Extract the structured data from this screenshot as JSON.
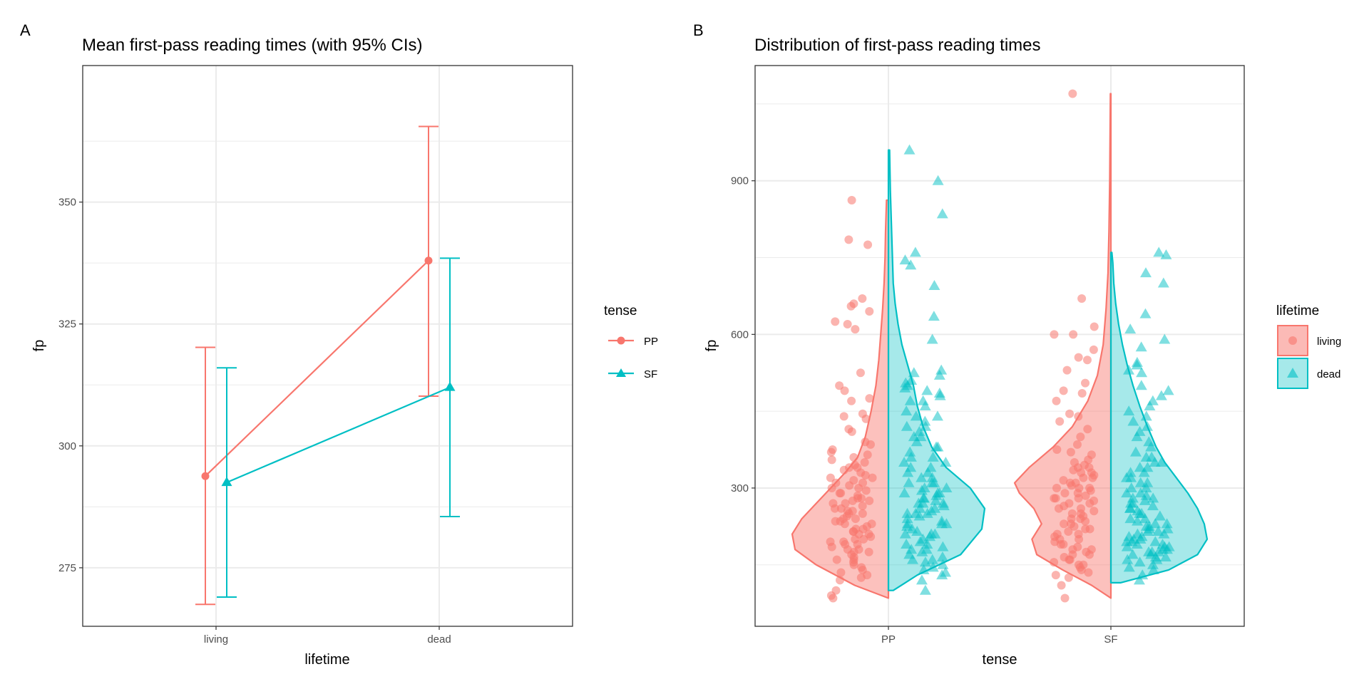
{
  "colors": {
    "red": "#F8766D",
    "teal": "#00BFC4",
    "grid": "#EBEBEB",
    "border": "#333333"
  },
  "chart_data": [
    {
      "panel": "A",
      "type": "line",
      "title": "Mean first-pass reading times (with 95% CIs)",
      "xlabel": "lifetime",
      "ylabel": "fp",
      "categories": [
        "living",
        "dead"
      ],
      "ylim": [
        263,
        378
      ],
      "yticks": [
        275,
        300,
        325,
        350
      ],
      "grid": true,
      "legend": {
        "title": "tense",
        "position": "right",
        "entries": [
          "PP",
          "SF"
        ]
      },
      "series": [
        {
          "name": "PP",
          "color": "#F8766D",
          "marker": "circle",
          "values": [
            293.8,
            338.0
          ],
          "ci_low": [
            267.5,
            310.2
          ],
          "ci_high": [
            320.2,
            365.5
          ]
        },
        {
          "name": "SF",
          "color": "#00BFC4",
          "marker": "triangle",
          "values": [
            292.5,
            312.0
          ],
          "ci_low": [
            269.0,
            285.5
          ],
          "ci_high": [
            316.0,
            338.5
          ]
        }
      ]
    },
    {
      "panel": "B",
      "type": "scatter",
      "subtype": "split violin with jittered points",
      "title": "Distribution of first-pass reading times",
      "xlabel": "tense",
      "ylabel": "fp",
      "categories": [
        "PP",
        "SF"
      ],
      "ylim": [
        30,
        1125
      ],
      "yticks": [
        300,
        600,
        900
      ],
      "grid": true,
      "legend": {
        "title": "lifetime",
        "position": "right",
        "entries": [
          "living",
          "dead"
        ]
      },
      "groups": [
        {
          "tense": "PP",
          "lifetime": "living",
          "color": "#F8766D",
          "marker": "circle",
          "range": [
            85,
            862
          ],
          "density": [
            [
              85,
              0
            ],
            [
              110,
              0.35
            ],
            [
              150,
              0.75
            ],
            [
              180,
              0.97
            ],
            [
              210,
              1.0
            ],
            [
              240,
              0.9
            ],
            [
              270,
              0.75
            ],
            [
              300,
              0.6
            ],
            [
              330,
              0.45
            ],
            [
              360,
              0.32
            ],
            [
              400,
              0.24
            ],
            [
              450,
              0.18
            ],
            [
              500,
              0.13
            ],
            [
              550,
              0.1
            ],
            [
              600,
              0.08
            ],
            [
              650,
              0.06
            ],
            [
              700,
              0.045
            ],
            [
              750,
              0.035
            ],
            [
              800,
              0.03
            ],
            [
              862,
              0.02
            ]
          ],
          "points": [
            862,
            785,
            775,
            670,
            660,
            655,
            645,
            625,
            620,
            610,
            525,
            500,
            490,
            475,
            470,
            445,
            440,
            435,
            415,
            410,
            390,
            385,
            375,
            370,
            365,
            360,
            355,
            350,
            345,
            340,
            335,
            330,
            325,
            320,
            315,
            310,
            305,
            300,
            295,
            290,
            285,
            280,
            275,
            270,
            265,
            260,
            255,
            250,
            245,
            240,
            235,
            230,
            225,
            220,
            215,
            210,
            205,
            200,
            195,
            190,
            185,
            180,
            175,
            170,
            165,
            160,
            155,
            150,
            145,
            140,
            135,
            130,
            125,
            120,
            100,
            90,
            85,
            310,
            290,
            270,
            250,
            230,
            210,
            190,
            200,
            220,
            240,
            260,
            280,
            300,
            320,
            340,
            180,
            160,
            175,
            195,
            215,
            235,
            255,
            275
          ]
        },
        {
          "tense": "PP",
          "lifetime": "dead",
          "color": "#00BFC4",
          "marker": "triangle",
          "range": [
            100,
            960
          ],
          "density": [
            [
              100,
              0.05
            ],
            [
              130,
              0.3
            ],
            [
              170,
              0.75
            ],
            [
              220,
              0.97
            ],
            [
              260,
              1.0
            ],
            [
              300,
              0.85
            ],
            [
              340,
              0.6
            ],
            [
              380,
              0.45
            ],
            [
              420,
              0.36
            ],
            [
              460,
              0.3
            ],
            [
              500,
              0.26
            ],
            [
              540,
              0.2
            ],
            [
              580,
              0.14
            ],
            [
              620,
              0.1
            ],
            [
              660,
              0.07
            ],
            [
              700,
              0.05
            ],
            [
              760,
              0.04
            ],
            [
              820,
              0.03
            ],
            [
              880,
              0.02
            ],
            [
              960,
              0.012
            ]
          ],
          "points": [
            960,
            900,
            835,
            760,
            745,
            735,
            695,
            635,
            590,
            530,
            525,
            520,
            510,
            505,
            500,
            495,
            490,
            485,
            480,
            470,
            460,
            450,
            440,
            430,
            420,
            410,
            400,
            390,
            380,
            370,
            360,
            350,
            340,
            330,
            320,
            310,
            300,
            295,
            290,
            285,
            280,
            275,
            270,
            265,
            260,
            255,
            250,
            245,
            240,
            235,
            230,
            225,
            220,
            215,
            210,
            205,
            200,
            195,
            190,
            185,
            180,
            175,
            170,
            165,
            160,
            155,
            150,
            145,
            140,
            135,
            130,
            120,
            100,
            310,
            290,
            270,
            250,
            230,
            210,
            290,
            270,
            250,
            350,
            330,
            310,
            400,
            380,
            440,
            420,
            470,
            230,
            210,
            190,
            260,
            280,
            300,
            320,
            340,
            360,
            180,
            160
          ]
        },
        {
          "tense": "SF",
          "lifetime": "living",
          "color": "#F8766D",
          "marker": "circle",
          "range": [
            85,
            1070
          ],
          "density": [
            [
              85,
              0
            ],
            [
              110,
              0.2
            ],
            [
              140,
              0.5
            ],
            [
              170,
              0.77
            ],
            [
              200,
              0.82
            ],
            [
              230,
              0.72
            ],
            [
              260,
              0.8
            ],
            [
              290,
              0.95
            ],
            [
              310,
              1.0
            ],
            [
              340,
              0.85
            ],
            [
              380,
              0.6
            ],
            [
              420,
              0.4
            ],
            [
              470,
              0.24
            ],
            [
              520,
              0.14
            ],
            [
              580,
              0.08
            ],
            [
              650,
              0.05
            ],
            [
              720,
              0.03
            ],
            [
              800,
              0.02
            ],
            [
              900,
              0.012
            ],
            [
              1000,
              0.008
            ],
            [
              1070,
              0.005
            ]
          ],
          "points": [
            1070,
            670,
            615,
            600,
            600,
            570,
            555,
            550,
            530,
            505,
            490,
            485,
            470,
            445,
            440,
            430,
            415,
            400,
            385,
            375,
            370,
            365,
            355,
            350,
            345,
            340,
            335,
            330,
            325,
            320,
            315,
            310,
            305,
            300,
            295,
            290,
            285,
            280,
            275,
            270,
            265,
            260,
            255,
            250,
            245,
            240,
            235,
            230,
            225,
            220,
            215,
            210,
            205,
            200,
            195,
            190,
            185,
            180,
            175,
            170,
            165,
            160,
            155,
            150,
            145,
            140,
            135,
            130,
            125,
            110,
            85,
            320,
            310,
            300,
            290,
            280,
            270,
            260,
            250,
            240,
            230,
            220,
            210,
            200,
            190,
            180,
            170,
            160,
            150,
            330,
            340,
            300,
            280
          ]
        },
        {
          "tense": "SF",
          "lifetime": "dead",
          "color": "#00BFC4",
          "marker": "triangle",
          "range": [
            115,
            760
          ],
          "density": [
            [
              115,
              0.1
            ],
            [
              140,
              0.6
            ],
            [
              170,
              0.9
            ],
            [
              200,
              1.0
            ],
            [
              230,
              0.97
            ],
            [
              260,
              0.9
            ],
            [
              290,
              0.8
            ],
            [
              320,
              0.68
            ],
            [
              350,
              0.56
            ],
            [
              380,
              0.47
            ],
            [
              420,
              0.38
            ],
            [
              460,
              0.3
            ],
            [
              500,
              0.23
            ],
            [
              540,
              0.17
            ],
            [
              580,
              0.12
            ],
            [
              620,
              0.08
            ],
            [
              660,
              0.05
            ],
            [
              700,
              0.03
            ],
            [
              740,
              0.02
            ],
            [
              760,
              0.01
            ]
          ],
          "points": [
            760,
            755,
            720,
            700,
            640,
            610,
            590,
            575,
            545,
            540,
            530,
            525,
            500,
            490,
            480,
            470,
            460,
            450,
            440,
            430,
            420,
            410,
            400,
            390,
            380,
            370,
            360,
            350,
            340,
            330,
            320,
            310,
            300,
            290,
            280,
            270,
            260,
            250,
            240,
            230,
            220,
            210,
            200,
            195,
            190,
            185,
            180,
            175,
            170,
            165,
            160,
            155,
            150,
            145,
            140,
            130,
            120,
            180,
            175,
            170,
            165,
            160,
            185,
            190,
            195,
            200,
            205,
            210,
            215,
            220,
            225,
            230,
            240,
            250,
            260,
            270,
            280,
            290,
            300,
            310,
            320,
            330,
            340,
            350,
            360,
            175,
            185,
            195,
            205,
            215,
            225,
            235,
            245,
            255,
            265,
            275,
            285
          ]
        }
      ]
    }
  ]
}
